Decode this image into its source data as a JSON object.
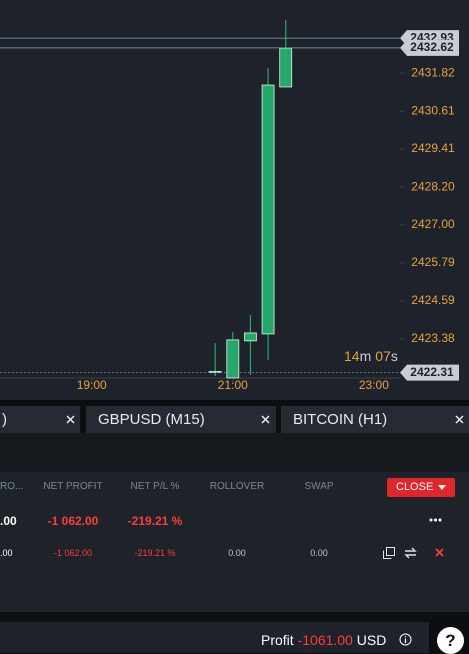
{
  "chart_data": {
    "type": "candlestick",
    "x": [
      20.75,
      21,
      21.25,
      21.5,
      21.75
    ],
    "open": [
      2422.31,
      2422.14,
      2423.32,
      2423.54,
      2431.38
    ],
    "high": [
      2423.25,
      2423.6,
      2424.14,
      2431.98,
      2433.5
    ],
    "low": [
      2422.2,
      2422.14,
      2422.24,
      2422.72,
      2431.38
    ],
    "close": [
      2422.35,
      2423.35,
      2423.57,
      2431.44,
      2432.61
    ],
    "color": "#26a86a",
    "xlim": [
      17.7,
      23.37
    ],
    "xticks": [
      {
        "value": 19,
        "label": "19:00"
      },
      {
        "value": 21,
        "label": "21:00"
      },
      {
        "value": 23,
        "label": "23:00"
      }
    ],
    "ylim": [
      2422.14,
      2434.14
    ],
    "yticks": [
      2423.38,
      2424.59,
      2425.79,
      {
        "value": 2427,
        "label": "2427.00"
      },
      {
        "value": 2428.2,
        "label": "2428.20"
      },
      2429.41,
      2430.61,
      2431.82
    ],
    "markers": [
      2432.93,
      2432.62,
      2422.31
    ],
    "countdown": {
      "minutes": "14",
      "m": "m",
      "seconds": "07",
      "s": "s"
    }
  },
  "tabs": [
    ")",
    "GBPUSD (M15)",
    "BITCOIN (H1)"
  ],
  "positions": {
    "columns": [
      "RO...",
      "NET PROFIT",
      "NET P/L %",
      "ROLLOVER",
      "SWAP"
    ],
    "close_button": "CLOSE",
    "rows": [
      [
        ".00",
        "-1 062.00",
        "-219.21 %"
      ],
      [
        ".00",
        "-1 062.00",
        "-219.21 %",
        "0.00",
        "0.00"
      ]
    ]
  },
  "footer": {
    "label": "Profit",
    "value": "-1061.00",
    "currency": "USD",
    "help": "?"
  }
}
